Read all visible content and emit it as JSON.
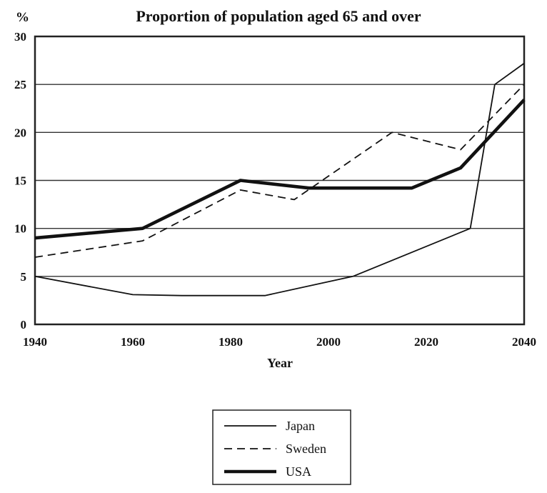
{
  "chart_data": {
    "type": "line",
    "title": "Proportion of population aged 65 and over",
    "ylabel": "%",
    "xlabel": "Year",
    "xlim": [
      1940,
      2040
    ],
    "ylim": [
      0,
      30
    ],
    "x_ticks": [
      "1940",
      "1960",
      "1980",
      "2000",
      "2020",
      "2040"
    ],
    "y_ticks": [
      "0",
      "5",
      "10",
      "15",
      "20",
      "25",
      "30"
    ],
    "grid": "horizontal",
    "legend_position": "bottom-center",
    "series": [
      {
        "name": "Japan",
        "style": "solid-thin",
        "color": "#111111",
        "points": [
          [
            1940,
            5
          ],
          [
            1960,
            3.1
          ],
          [
            1970,
            3
          ],
          [
            1987,
            3
          ],
          [
            2005,
            5
          ],
          [
            2029,
            10
          ],
          [
            2034,
            25
          ],
          [
            2040,
            27.2
          ]
        ]
      },
      {
        "name": "Sweden",
        "style": "dashed",
        "color": "#111111",
        "points": [
          [
            1940,
            7
          ],
          [
            1962,
            8.7
          ],
          [
            1982,
            14
          ],
          [
            1993,
            13
          ],
          [
            2013,
            20
          ],
          [
            2027,
            18.2
          ],
          [
            2040,
            25
          ]
        ]
      },
      {
        "name": "USA",
        "style": "solid-thick",
        "color": "#111111",
        "points": [
          [
            1940,
            9
          ],
          [
            1962,
            10
          ],
          [
            1982,
            15
          ],
          [
            1996,
            14.2
          ],
          [
            2017,
            14.2
          ],
          [
            2027,
            16.3
          ],
          [
            2040,
            23.4
          ]
        ]
      }
    ]
  }
}
